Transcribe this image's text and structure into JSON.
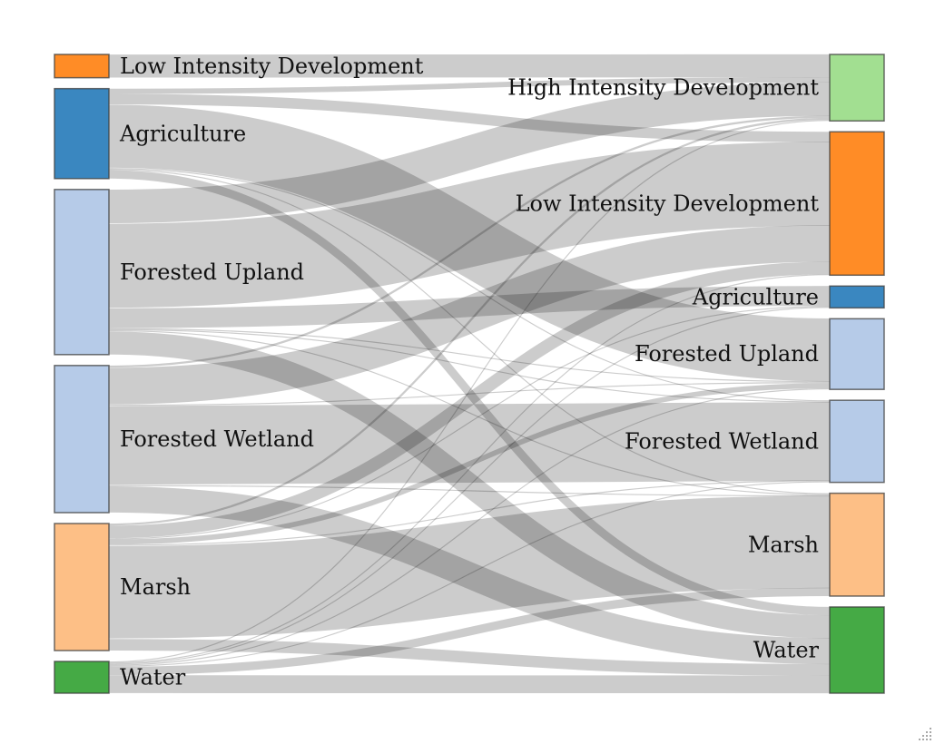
{
  "chart_data": {
    "type": "sankey",
    "sources": [
      {
        "id": "src-lid",
        "label": "Low Intensity Development",
        "color": "#ff8c26"
      },
      {
        "id": "src-ag",
        "label": "Agriculture",
        "color": "#3a87c0"
      },
      {
        "id": "src-fu",
        "label": "Forested Upland",
        "color": "#b6cbe8"
      },
      {
        "id": "src-fw",
        "label": "Forested Wetland",
        "color": "#b6cbe8"
      },
      {
        "id": "src-marsh",
        "label": "Marsh",
        "color": "#fdbf86"
      },
      {
        "id": "src-water",
        "label": "Water",
        "color": "#45aa45"
      }
    ],
    "targets": [
      {
        "id": "tgt-hid",
        "label": "High Intensity Development",
        "color": "#a2df91"
      },
      {
        "id": "tgt-lid",
        "label": "Low Intensity Development",
        "color": "#ff8c26"
      },
      {
        "id": "tgt-ag",
        "label": "Agriculture",
        "color": "#3a87c0"
      },
      {
        "id": "tgt-fu",
        "label": "Forested Upland",
        "color": "#b6cbe8"
      },
      {
        "id": "tgt-fw",
        "label": "Forested Wetland",
        "color": "#b6cbe8"
      },
      {
        "id": "tgt-marsh",
        "label": "Marsh",
        "color": "#fdbf86"
      },
      {
        "id": "tgt-water",
        "label": "Water",
        "color": "#45aa45"
      }
    ],
    "links": [
      {
        "source": "src-lid",
        "target": "tgt-hid",
        "value": 22
      },
      {
        "source": "src-ag",
        "target": "tgt-hid",
        "value": 5
      },
      {
        "source": "src-ag",
        "target": "tgt-lid",
        "value": 10
      },
      {
        "source": "src-ag",
        "target": "tgt-fu",
        "value": 60
      },
      {
        "source": "src-ag",
        "target": "tgt-fw",
        "value": 1
      },
      {
        "source": "src-ag",
        "target": "tgt-marsh",
        "value": 1
      },
      {
        "source": "src-ag",
        "target": "tgt-water",
        "value": 8
      },
      {
        "source": "src-fu",
        "target": "tgt-hid",
        "value": 32
      },
      {
        "source": "src-fu",
        "target": "tgt-lid",
        "value": 80
      },
      {
        "source": "src-fu",
        "target": "tgt-ag",
        "value": 19
      },
      {
        "source": "src-fu",
        "target": "tgt-fu",
        "value": 1
      },
      {
        "source": "src-fu",
        "target": "tgt-fw",
        "value": 1
      },
      {
        "source": "src-fu",
        "target": "tgt-marsh",
        "value": 1
      },
      {
        "source": "src-fu",
        "target": "tgt-water",
        "value": 22
      },
      {
        "source": "src-fw",
        "target": "tgt-hid",
        "value": 2
      },
      {
        "source": "src-fw",
        "target": "tgt-lid",
        "value": 35
      },
      {
        "source": "src-fw",
        "target": "tgt-fu",
        "value": 1
      },
      {
        "source": "src-fw",
        "target": "tgt-fw",
        "value": 75
      },
      {
        "source": "src-fw",
        "target": "tgt-marsh",
        "value": 1
      },
      {
        "source": "src-fw",
        "target": "tgt-water",
        "value": 25
      },
      {
        "source": "src-marsh",
        "target": "tgt-hid",
        "value": 2
      },
      {
        "source": "src-marsh",
        "target": "tgt-lid",
        "value": 12
      },
      {
        "source": "src-marsh",
        "target": "tgt-ag",
        "value": 1
      },
      {
        "source": "src-marsh",
        "target": "tgt-fu",
        "value": 5
      },
      {
        "source": "src-marsh",
        "target": "tgt-fw",
        "value": 1
      },
      {
        "source": "src-marsh",
        "target": "tgt-marsh",
        "value": 88
      },
      {
        "source": "src-marsh",
        "target": "tgt-water",
        "value": 11
      },
      {
        "source": "src-water",
        "target": "tgt-hid",
        "value": 1
      },
      {
        "source": "src-water",
        "target": "tgt-lid",
        "value": 1
      },
      {
        "source": "src-water",
        "target": "tgt-ag",
        "value": 1
      },
      {
        "source": "src-water",
        "target": "tgt-fu",
        "value": 1
      },
      {
        "source": "src-water",
        "target": "tgt-fw",
        "value": 1
      },
      {
        "source": "src-water",
        "target": "tgt-marsh",
        "value": 8
      },
      {
        "source": "src-water",
        "target": "tgt-water",
        "value": 17
      }
    ]
  }
}
